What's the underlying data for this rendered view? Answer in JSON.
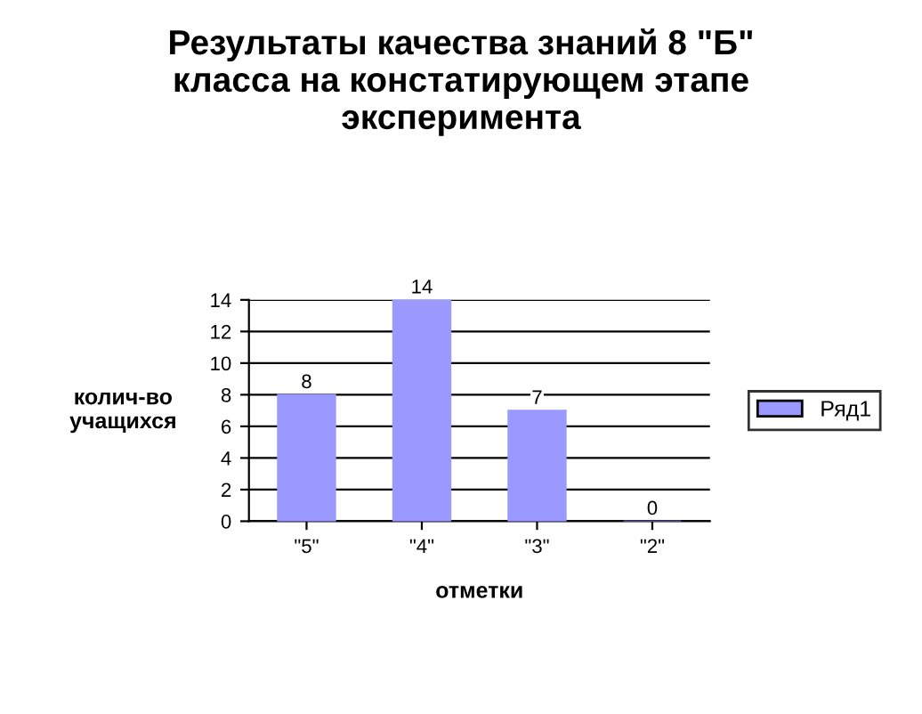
{
  "chart_data": {
    "type": "bar",
    "title": "Результаты качества знаний 8 \"Б\"\nкласса на констатирующем этапе\nэксперимента",
    "xlabel": "отметки",
    "ylabel": "колич-во\nучащихся",
    "categories": [
      "\"5\"",
      "\"4\"",
      "\"3\"",
      "\"2\""
    ],
    "series": [
      {
        "name": "Ряд1",
        "color": "#9999ff",
        "values": [
          8,
          14,
          7,
          0
        ]
      }
    ],
    "ylim": [
      0,
      14
    ],
    "yticks": [
      0,
      2,
      4,
      6,
      8,
      10,
      12,
      14
    ],
    "grid": "y",
    "legend": "right",
    "data_labels": true
  }
}
